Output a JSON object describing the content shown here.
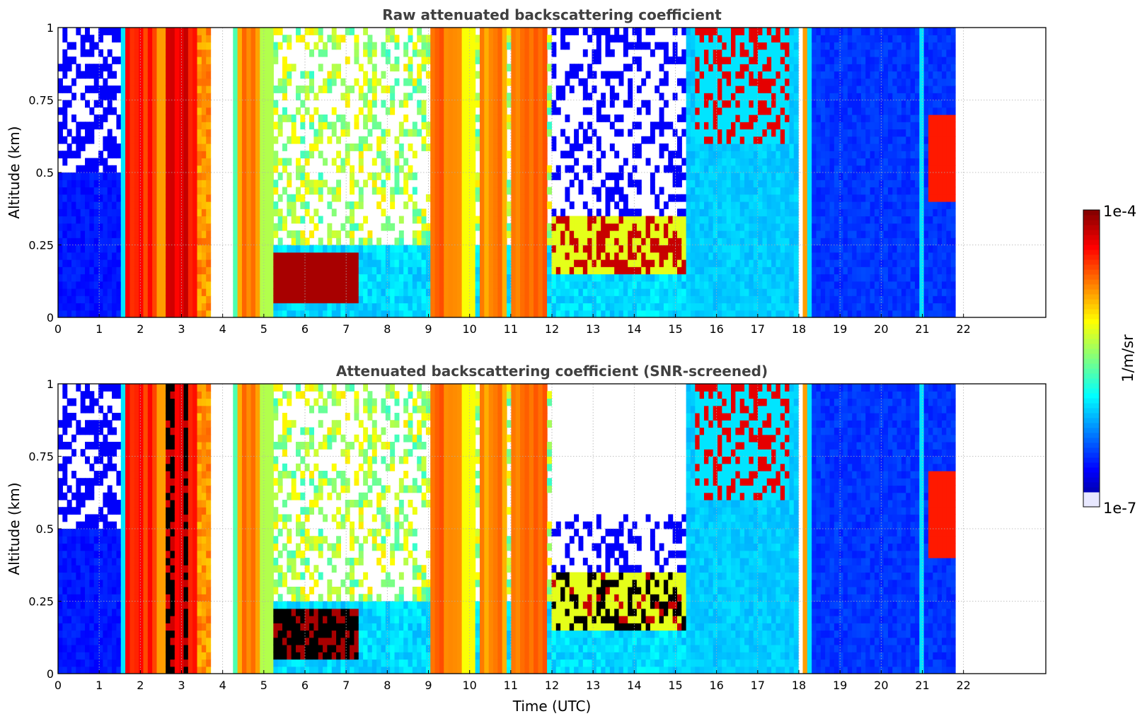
{
  "colors": {
    "jet": [
      "#00007f",
      "#0000ff",
      "#007fff",
      "#00ffff",
      "#7fff7f",
      "#ffff00",
      "#ff7f00",
      "#ff0000",
      "#7f0000"
    ],
    "low_end": "#e8e8ff",
    "screened": "#000000",
    "grid": "#b0b0b0"
  },
  "chart_data": [
    {
      "type": "heatmap",
      "title": "Raw attenuated backscattering coefficient",
      "xlabel": "",
      "ylabel": "Altitude (km)",
      "xlim": [
        0,
        24
      ],
      "ylim": [
        0,
        1
      ],
      "xticks": [
        "0",
        "1",
        "2",
        "3",
        "4",
        "5",
        "6",
        "7",
        "8",
        "9",
        "10",
        "11",
        "12",
        "13",
        "14",
        "15",
        "16",
        "17",
        "18",
        "19",
        "20",
        "21",
        "22"
      ],
      "yticks": [
        "0",
        "0.25",
        "0.5",
        "0.75",
        "1"
      ],
      "grid": true,
      "data_end_hour": 21.8
    },
    {
      "type": "heatmap",
      "title": "Attenuated backscattering coefficient (SNR-screened)",
      "xlabel": "Time (UTC)",
      "ylabel": "Altitude (km)",
      "xlim": [
        0,
        24
      ],
      "ylim": [
        0,
        1
      ],
      "xticks": [
        "0",
        "1",
        "2",
        "3",
        "4",
        "5",
        "6",
        "7",
        "8",
        "9",
        "10",
        "11",
        "12",
        "13",
        "14",
        "15",
        "16",
        "17",
        "18",
        "19",
        "20",
        "21",
        "22"
      ],
      "yticks": [
        "0",
        "0.25",
        "0.5",
        "0.75",
        "1"
      ],
      "grid": true,
      "data_end_hour": 21.8
    }
  ],
  "colorbar": {
    "label": "1/m/sr",
    "max_label": "1e-4",
    "min_label": "1e-7",
    "scale": "log"
  }
}
